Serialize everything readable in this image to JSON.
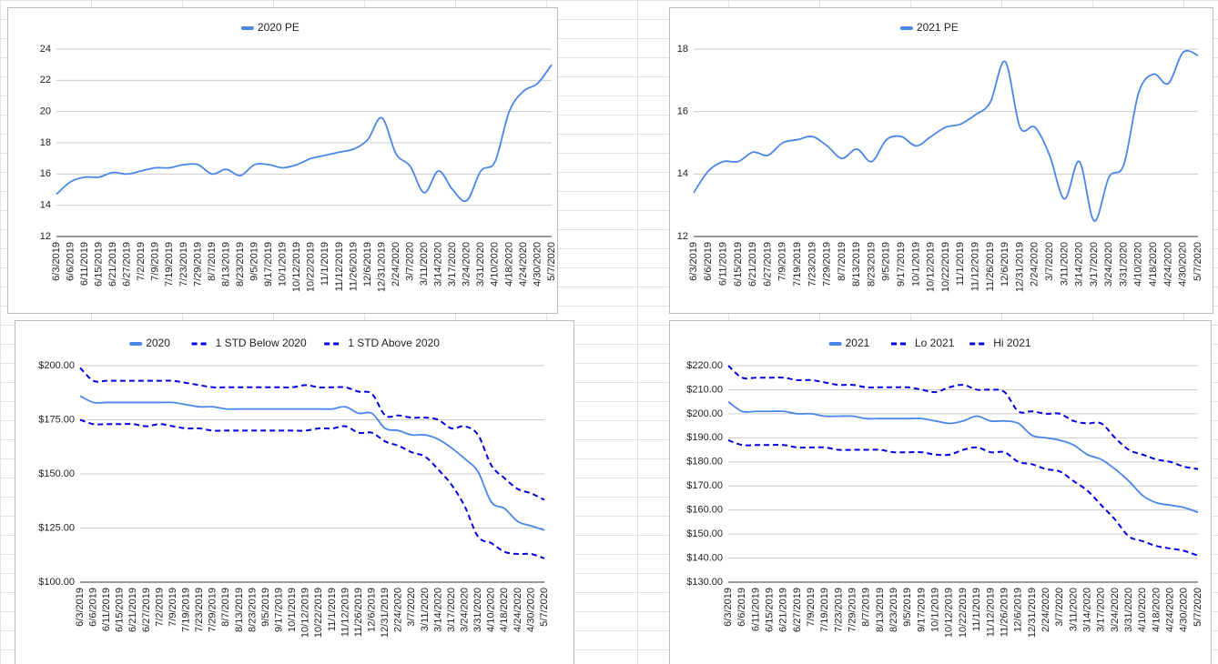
{
  "chart_data": [
    {
      "type": "line",
      "categories": [
        "6/3/2019",
        "6/6/2019",
        "6/11/2019",
        "6/15/2019",
        "6/21/2019",
        "6/27/2019",
        "7/2/2019",
        "7/9/2019",
        "7/19/2019",
        "7/23/2019",
        "7/29/2019",
        "8/7/2019",
        "8/13/2019",
        "8/23/2019",
        "9/5/2019",
        "9/17/2019",
        "10/1/2019",
        "10/12/2019",
        "10/22/2019",
        "11/1/2019",
        "11/12/2019",
        "11/26/2019",
        "12/6/2019",
        "12/31/2019",
        "2/24/2020",
        "3/7/2020",
        "3/11/2020",
        "3/14/2020",
        "3/17/2020",
        "3/24/2020",
        "3/31/2020",
        "4/10/2020",
        "4/18/2020",
        "4/24/2020",
        "4/30/2020",
        "5/7/2020"
      ],
      "series": [
        {
          "name": "2020 PE",
          "color": "#4a86e8",
          "dashed": false,
          "values": [
            14.7,
            15.5,
            15.8,
            15.8,
            16.1,
            16.0,
            16.2,
            16.4,
            16.4,
            16.6,
            16.6,
            16.0,
            16.3,
            15.9,
            16.6,
            16.6,
            16.4,
            16.6,
            17.0,
            17.2,
            17.4,
            17.6,
            18.2,
            19.6,
            17.3,
            16.5,
            14.8,
            16.2,
            15.0,
            14.3,
            16.2,
            16.8,
            20.0,
            21.3,
            21.8,
            23.0
          ]
        }
      ],
      "ylim": [
        12,
        24
      ],
      "yticks": [
        12,
        14,
        16,
        18,
        20,
        22,
        24
      ],
      "grid": true
    },
    {
      "type": "line",
      "categories": [
        "6/3/2019",
        "6/6/2019",
        "6/11/2019",
        "6/15/2019",
        "6/21/2019",
        "6/27/2019",
        "7/9/2019",
        "7/19/2019",
        "7/23/2019",
        "7/29/2019",
        "8/7/2019",
        "8/13/2019",
        "8/23/2019",
        "9/5/2019",
        "9/17/2019",
        "10/1/2019",
        "10/12/2019",
        "10/22/2019",
        "11/1/2019",
        "11/12/2019",
        "11/26/2019",
        "12/6/2019",
        "12/31/2019",
        "2/24/2020",
        "3/7/2020",
        "3/11/2020",
        "3/14/2020",
        "3/17/2020",
        "3/24/2020",
        "3/31/2020",
        "4/10/2020",
        "4/18/2020",
        "4/24/2020",
        "4/30/2020",
        "5/7/2020"
      ],
      "series": [
        {
          "name": "2021 PE",
          "color": "#4a86e8",
          "dashed": false,
          "values": [
            13.4,
            14.1,
            14.4,
            14.4,
            14.7,
            14.6,
            15.0,
            15.1,
            15.2,
            14.9,
            14.5,
            14.8,
            14.4,
            15.1,
            15.2,
            14.9,
            15.2,
            15.5,
            15.6,
            15.9,
            16.3,
            17.6,
            15.5,
            15.5,
            14.6,
            13.2,
            14.4,
            12.5,
            13.9,
            14.3,
            16.6,
            17.2,
            16.9,
            17.9,
            17.8
          ]
        }
      ],
      "ylim": [
        12,
        18
      ],
      "yticks": [
        12,
        14,
        16,
        18
      ],
      "grid": true
    },
    {
      "type": "line",
      "categories": [
        "6/3/2019",
        "6/6/2019",
        "6/11/2019",
        "6/15/2019",
        "6/21/2019",
        "6/27/2019",
        "7/2/2019",
        "7/9/2019",
        "7/19/2019",
        "7/23/2019",
        "7/29/2019",
        "8/7/2019",
        "8/13/2019",
        "8/23/2019",
        "9/5/2019",
        "9/17/2019",
        "10/1/2019",
        "10/12/2019",
        "10/22/2019",
        "11/1/2019",
        "11/12/2019",
        "11/26/2019",
        "12/6/2019",
        "12/31/2019",
        "2/24/2020",
        "3/7/2020",
        "3/11/2020",
        "3/14/2020",
        "3/17/2020",
        "3/24/2020",
        "3/31/2020",
        "4/10/2020",
        "4/18/2020",
        "4/24/2020",
        "4/30/2020",
        "5/7/2020"
      ],
      "series": [
        {
          "name": "2020",
          "color": "#4a86e8",
          "dashed": false,
          "values": [
            186,
            183,
            183,
            183,
            183,
            183,
            183,
            183,
            182,
            181,
            181,
            180,
            180,
            180,
            180,
            180,
            180,
            180,
            180,
            180,
            181,
            178,
            178,
            171,
            170,
            168,
            168,
            166,
            162,
            157,
            151,
            137,
            134,
            128,
            126,
            124
          ]
        },
        {
          "name": "1 STD Below 2020",
          "color": "#0000e0",
          "dashed": true,
          "values": [
            175,
            173,
            173,
            173,
            173,
            172,
            173,
            172,
            171,
            171,
            170,
            170,
            170,
            170,
            170,
            170,
            170,
            170,
            171,
            171,
            172,
            169,
            169,
            165,
            163,
            160,
            158,
            152,
            145,
            135,
            121,
            118,
            114,
            113,
            113,
            111
          ]
        },
        {
          "name": "1 STD Above 2020",
          "color": "#0000e0",
          "dashed": true,
          "values": [
            199,
            193,
            193,
            193,
            193,
            193,
            193,
            193,
            192,
            191,
            190,
            190,
            190,
            190,
            190,
            190,
            190,
            191,
            190,
            190,
            190,
            188,
            187,
            177,
            177,
            176,
            176,
            175,
            171,
            172,
            168,
            154,
            148,
            143,
            141,
            138
          ]
        }
      ],
      "ylim": [
        100,
        200
      ],
      "yticks": [
        {
          "value": 100,
          "label": "$100.00"
        },
        {
          "value": 125,
          "label": "$125.00"
        },
        {
          "value": 150,
          "label": "$150.00"
        },
        {
          "value": 175,
          "label": "$175.00"
        },
        {
          "value": 200,
          "label": "$200.00"
        }
      ],
      "grid": true
    },
    {
      "type": "line",
      "categories": [
        "6/3/2019",
        "6/6/2019",
        "6/11/2019",
        "6/15/2019",
        "6/21/2019",
        "6/27/2019",
        "7/9/2019",
        "7/19/2019",
        "7/23/2019",
        "7/29/2019",
        "8/7/2019",
        "8/13/2019",
        "8/23/2019",
        "9/5/2019",
        "9/17/2019",
        "10/1/2019",
        "10/12/2019",
        "10/22/2019",
        "11/1/2019",
        "11/12/2019",
        "11/26/2019",
        "12/6/2019",
        "12/31/2019",
        "2/24/2020",
        "3/7/2020",
        "3/11/2020",
        "3/14/2020",
        "3/17/2020",
        "3/24/2020",
        "3/31/2020",
        "4/10/2020",
        "4/18/2020",
        "4/24/2020",
        "4/30/2020",
        "5/7/2020"
      ],
      "series": [
        {
          "name": "2021",
          "color": "#4a86e8",
          "dashed": false,
          "values": [
            205,
            201,
            201,
            201,
            201,
            200,
            200,
            199,
            199,
            199,
            198,
            198,
            198,
            198,
            198,
            197,
            196,
            197,
            199,
            197,
            197,
            196,
            191,
            190,
            189,
            187,
            183,
            181,
            177,
            172,
            166,
            163,
            162,
            161,
            159
          ]
        },
        {
          "name": "Lo 2021",
          "color": "#0000e0",
          "dashed": true,
          "values": [
            189,
            187,
            187,
            187,
            187,
            186,
            186,
            186,
            185,
            185,
            185,
            185,
            184,
            184,
            184,
            183,
            183,
            185,
            186,
            184,
            184,
            180,
            179,
            177,
            176,
            172,
            168,
            162,
            156,
            149,
            147,
            145,
            144,
            143,
            141
          ]
        },
        {
          "name": "Hi 2021",
          "color": "#0000e0",
          "dashed": true,
          "values": [
            220,
            215,
            215,
            215,
            215,
            214,
            214,
            213,
            212,
            212,
            211,
            211,
            211,
            211,
            210,
            209,
            211,
            212,
            210,
            210,
            209,
            201,
            201,
            200,
            200,
            197,
            196,
            196,
            190,
            185,
            183,
            181,
            180,
            178,
            177
          ]
        }
      ],
      "ylim": [
        130,
        220
      ],
      "yticks": [
        {
          "value": 130,
          "label": "$130.00"
        },
        {
          "value": 140,
          "label": "$140.00"
        },
        {
          "value": 150,
          "label": "$150.00"
        },
        {
          "value": 160,
          "label": "$160.00"
        },
        {
          "value": 170,
          "label": "$170.00"
        },
        {
          "value": 180,
          "label": "$180.00"
        },
        {
          "value": 190,
          "label": "$190.00"
        },
        {
          "value": 200,
          "label": "$200.00"
        },
        {
          "value": 210,
          "label": "$210.00"
        },
        {
          "value": 220,
          "label": "$220.00"
        }
      ],
      "grid": true
    }
  ]
}
